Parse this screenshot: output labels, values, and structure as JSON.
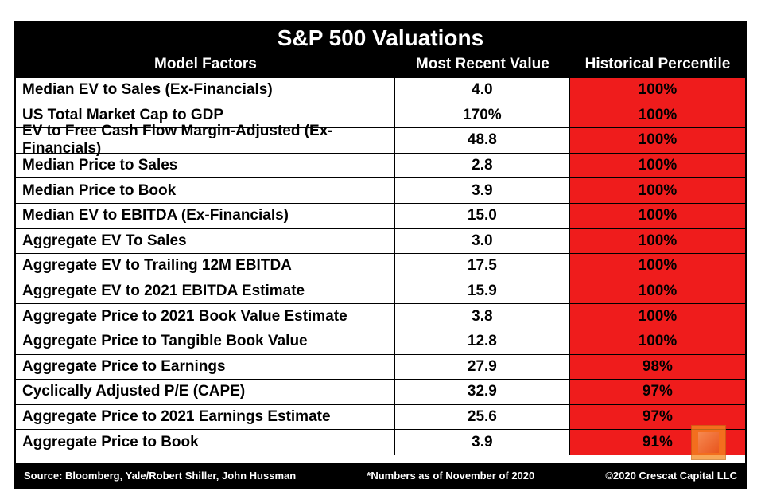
{
  "title": "S&P 500 Valuations",
  "columns": {
    "c1": "Model Factors",
    "c2": "Most Recent Value",
    "c3": "Historical Percentile"
  },
  "percentile_bg": "#ef1c1c",
  "rows": [
    {
      "factor": "Median EV to Sales (Ex-Financials)",
      "value": "4.0",
      "percentile": "100%"
    },
    {
      "factor": "US Total Market Cap to GDP",
      "value": "170%",
      "percentile": "100%"
    },
    {
      "factor": "EV to Free Cash Flow Margin-Adjusted (Ex-Financials)",
      "value": "48.8",
      "percentile": "100%"
    },
    {
      "factor": "Median Price to Sales",
      "value": "2.8",
      "percentile": "100%"
    },
    {
      "factor": "Median Price to Book",
      "value": "3.9",
      "percentile": "100%"
    },
    {
      "factor": "Median EV to EBITDA (Ex-Financials)",
      "value": "15.0",
      "percentile": "100%"
    },
    {
      "factor": "Aggregate EV To Sales",
      "value": "3.0",
      "percentile": "100%"
    },
    {
      "factor": "Aggregate EV to Trailing 12M EBITDA",
      "value": "17.5",
      "percentile": "100%"
    },
    {
      "factor": "Aggregate EV to 2021 EBITDA Estimate",
      "value": "15.9",
      "percentile": "100%"
    },
    {
      "factor": "Aggregate Price to 2021 Book Value Estimate",
      "value": "3.8",
      "percentile": "100%"
    },
    {
      "factor": "Aggregate Price to Tangible Book Value",
      "value": "12.8",
      "percentile": "100%"
    },
    {
      "factor": "Aggregate Price to Earnings",
      "value": "27.9",
      "percentile": "98%"
    },
    {
      "factor": "Cyclically Adjusted P/E (CAPE)",
      "value": "32.9",
      "percentile": "97%"
    },
    {
      "factor": "Aggregate Price to 2021 Earnings Estimate",
      "value": "25.6",
      "percentile": "97%"
    },
    {
      "factor": "Aggregate Price to Book",
      "value": "3.9",
      "percentile": "91%"
    }
  ],
  "footer": {
    "left": "Source: Bloomberg, Yale/Robert Shiller, John Hussman",
    "mid": "*Numbers as of November of 2020",
    "right": "©2020 Crescat Capital LLC"
  }
}
